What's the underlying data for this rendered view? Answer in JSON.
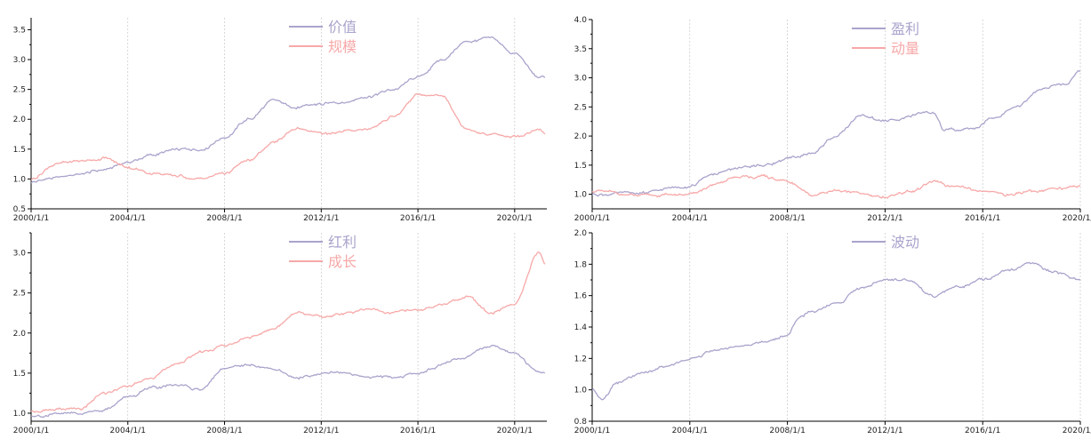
{
  "colors": {
    "series_a": "#aaa3cc",
    "series_b": "#f7a8a8"
  },
  "chart_data": [
    {
      "id": "top-left",
      "type": "line",
      "x_ticks": [
        "2000/1/1",
        "2004/1/1",
        "2008/1/1",
        "2012/1/1",
        "2016/1/1",
        "2020/1/1"
      ],
      "xlim": [
        "2000-01-01",
        "2021-05-01"
      ],
      "y_ticks": [
        "0.5",
        "1.0",
        "1.5",
        "2.0",
        "2.5",
        "3.0",
        "3.5"
      ],
      "ylim": [
        0.5,
        3.7
      ],
      "grid": true,
      "legend_position": "top-center",
      "series": [
        {
          "name": "价值",
          "color": "#aaa3cc",
          "points": [
            [
              "2000-01",
              0.95
            ],
            [
              "2001-01",
              1.02
            ],
            [
              "2002-01",
              1.08
            ],
            [
              "2003-01",
              1.15
            ],
            [
              "2004-01",
              1.28
            ],
            [
              "2005-01",
              1.4
            ],
            [
              "2006-01",
              1.48
            ],
            [
              "2007-01",
              1.5
            ],
            [
              "2008-01",
              1.7
            ],
            [
              "2009-01",
              2.0
            ],
            [
              "2010-01",
              2.3
            ],
            [
              "2011-01",
              2.2
            ],
            [
              "2012-01",
              2.25
            ],
            [
              "2013-01",
              2.3
            ],
            [
              "2014-01",
              2.4
            ],
            [
              "2015-01",
              2.5
            ],
            [
              "2016-01",
              2.7
            ],
            [
              "2017-01",
              3.0
            ],
            [
              "2018-01",
              3.3
            ],
            [
              "2019-01",
              3.35
            ],
            [
              "2020-01",
              3.1
            ],
            [
              "2021-01",
              2.7
            ],
            [
              "2021-04",
              2.7
            ]
          ]
        },
        {
          "name": "规模",
          "color": "#f7a8a8",
          "points": [
            [
              "2000-01",
              1.0
            ],
            [
              "2001-01",
              1.25
            ],
            [
              "2002-01",
              1.3
            ],
            [
              "2003-01",
              1.35
            ],
            [
              "2004-01",
              1.2
            ],
            [
              "2005-01",
              1.1
            ],
            [
              "2006-01",
              1.05
            ],
            [
              "2007-01",
              1.0
            ],
            [
              "2008-01",
              1.1
            ],
            [
              "2009-01",
              1.3
            ],
            [
              "2010-01",
              1.6
            ],
            [
              "2011-01",
              1.85
            ],
            [
              "2012-01",
              1.75
            ],
            [
              "2013-01",
              1.8
            ],
            [
              "2014-01",
              1.85
            ],
            [
              "2015-01",
              2.05
            ],
            [
              "2016-01",
              2.4
            ],
            [
              "2017-01",
              2.4
            ],
            [
              "2018-01",
              1.85
            ],
            [
              "2019-01",
              1.75
            ],
            [
              "2020-01",
              1.7
            ],
            [
              "2021-01",
              1.8
            ],
            [
              "2021-04",
              1.75
            ]
          ]
        }
      ]
    },
    {
      "id": "top-right",
      "type": "line",
      "x_ticks": [
        "2000/1/1",
        "2004/1/1",
        "2008/1/1",
        "2012/1/1",
        "2016/1/1",
        "2020/1/1"
      ],
      "xlim": [
        "2000-01-01",
        "2020-01-01"
      ],
      "y_ticks": [
        "1.0",
        "1.5",
        "2.0",
        "2.5",
        "3.0",
        "3.5",
        "4.0"
      ],
      "ylim": [
        0.75,
        4.0
      ],
      "grid": true,
      "legend_position": "top-center",
      "series": [
        {
          "name": "盈利",
          "color": "#aaa3cc",
          "points": [
            [
              "2000-01",
              1.0
            ],
            [
              "2002-01",
              1.02
            ],
            [
              "2004-01",
              1.15
            ],
            [
              "2005-01",
              1.35
            ],
            [
              "2006-01",
              1.45
            ],
            [
              "2007-01",
              1.5
            ],
            [
              "2008-01",
              1.6
            ],
            [
              "2009-01",
              1.7
            ],
            [
              "2010-01",
              2.0
            ],
            [
              "2011-01",
              2.35
            ],
            [
              "2012-01",
              2.25
            ],
            [
              "2013-01",
              2.35
            ],
            [
              "2014-01",
              2.4
            ],
            [
              "2014-06",
              2.1
            ],
            [
              "2015-06",
              2.1
            ],
            [
              "2016-06",
              2.3
            ],
            [
              "2017-06",
              2.5
            ],
            [
              "2018-06",
              2.8
            ],
            [
              "2019-06",
              2.9
            ],
            [
              "2020-01",
              3.1
            ]
          ]
        },
        {
          "name": "动量",
          "color": "#f7a8a8",
          "points": [
            [
              "2000-01",
              1.05
            ],
            [
              "2002-01",
              0.97
            ],
            [
              "2004-01",
              1.0
            ],
            [
              "2005-01",
              1.15
            ],
            [
              "2006-01",
              1.3
            ],
            [
              "2007-01",
              1.3
            ],
            [
              "2008-01",
              1.2
            ],
            [
              "2009-01",
              1.0
            ],
            [
              "2010-01",
              1.05
            ],
            [
              "2011-01",
              1.0
            ],
            [
              "2012-01",
              0.95
            ],
            [
              "2013-01",
              1.05
            ],
            [
              "2014-01",
              1.2
            ],
            [
              "2015-01",
              1.1
            ],
            [
              "2016-01",
              1.05
            ],
            [
              "2017-01",
              1.0
            ],
            [
              "2018-01",
              1.05
            ],
            [
              "2019-01",
              1.1
            ],
            [
              "2020-01",
              1.15
            ]
          ]
        }
      ]
    },
    {
      "id": "bottom-left",
      "type": "line",
      "x_ticks": [
        "2000/1/1",
        "2004/1/1",
        "2008/1/1",
        "2012/1/1",
        "2016/1/1",
        "2020/1/1"
      ],
      "xlim": [
        "2000-01-01",
        "2021-05-01"
      ],
      "y_ticks": [
        "1.0",
        "1.5",
        "2.0",
        "2.5",
        "3.0"
      ],
      "ylim": [
        0.9,
        3.25
      ],
      "grid": true,
      "legend_position": "top-center",
      "series": [
        {
          "name": "红利",
          "color": "#aaa3cc",
          "points": [
            [
              "2000-01",
              0.97
            ],
            [
              "2001-01",
              0.98
            ],
            [
              "2002-01",
              1.0
            ],
            [
              "2003-01",
              1.05
            ],
            [
              "2004-01",
              1.2
            ],
            [
              "2005-01",
              1.3
            ],
            [
              "2006-01",
              1.35
            ],
            [
              "2007-01",
              1.3
            ],
            [
              "2008-01",
              1.55
            ],
            [
              "2009-01",
              1.6
            ],
            [
              "2010-01",
              1.55
            ],
            [
              "2011-01",
              1.45
            ],
            [
              "2012-01",
              1.5
            ],
            [
              "2013-01",
              1.5
            ],
            [
              "2014-01",
              1.45
            ],
            [
              "2015-01",
              1.45
            ],
            [
              "2016-01",
              1.5
            ],
            [
              "2017-01",
              1.6
            ],
            [
              "2018-01",
              1.7
            ],
            [
              "2019-01",
              1.85
            ],
            [
              "2020-01",
              1.75
            ],
            [
              "2021-01",
              1.5
            ],
            [
              "2021-04",
              1.5
            ]
          ]
        },
        {
          "name": "成长",
          "color": "#f7a8a8",
          "points": [
            [
              "2000-01",
              1.02
            ],
            [
              "2001-01",
              1.05
            ],
            [
              "2002-01",
              1.05
            ],
            [
              "2003-01",
              1.25
            ],
            [
              "2004-01",
              1.35
            ],
            [
              "2005-01",
              1.45
            ],
            [
              "2006-01",
              1.6
            ],
            [
              "2007-01",
              1.75
            ],
            [
              "2008-01",
              1.85
            ],
            [
              "2009-01",
              1.95
            ],
            [
              "2010-01",
              2.05
            ],
            [
              "2011-01",
              2.25
            ],
            [
              "2012-01",
              2.2
            ],
            [
              "2013-01",
              2.25
            ],
            [
              "2014-01",
              2.3
            ],
            [
              "2015-01",
              2.25
            ],
            [
              "2016-01",
              2.3
            ],
            [
              "2017-01",
              2.35
            ],
            [
              "2018-01",
              2.45
            ],
            [
              "2019-01",
              2.25
            ],
            [
              "2020-01",
              2.35
            ],
            [
              "2021-01",
              3.0
            ],
            [
              "2021-04",
              2.85
            ]
          ]
        }
      ]
    },
    {
      "id": "bottom-right",
      "type": "line",
      "x_ticks": [
        "2000/1/1",
        "2004/1/1",
        "2008/1/1",
        "2012/1/1",
        "2016/1/1",
        "2020/1/1"
      ],
      "xlim": [
        "2000-01-01",
        "2020-01-01"
      ],
      "y_ticks": [
        "0.8",
        "1.0",
        "1.2",
        "1.4",
        "1.6",
        "1.8",
        "2.0"
      ],
      "ylim": [
        0.8,
        2.0
      ],
      "grid": true,
      "legend_position": "top-center",
      "series": [
        {
          "name": "波动",
          "color": "#aaa3cc",
          "points": [
            [
              "2000-01",
              1.0
            ],
            [
              "2000-06",
              0.95
            ],
            [
              "2001-01",
              1.05
            ],
            [
              "2002-01",
              1.1
            ],
            [
              "2003-01",
              1.15
            ],
            [
              "2004-01",
              1.2
            ],
            [
              "2005-01",
              1.25
            ],
            [
              "2006-01",
              1.28
            ],
            [
              "2007-01",
              1.3
            ],
            [
              "2008-01",
              1.35
            ],
            [
              "2008-06",
              1.45
            ],
            [
              "2009-01",
              1.5
            ],
            [
              "2010-01",
              1.55
            ],
            [
              "2011-01",
              1.65
            ],
            [
              "2012-01",
              1.7
            ],
            [
              "2013-01",
              1.7
            ],
            [
              "2014-01",
              1.6
            ],
            [
              "2015-01",
              1.65
            ],
            [
              "2016-01",
              1.7
            ],
            [
              "2017-01",
              1.75
            ],
            [
              "2018-01",
              1.8
            ],
            [
              "2019-01",
              1.75
            ],
            [
              "2020-01",
              1.7
            ]
          ]
        }
      ]
    }
  ]
}
